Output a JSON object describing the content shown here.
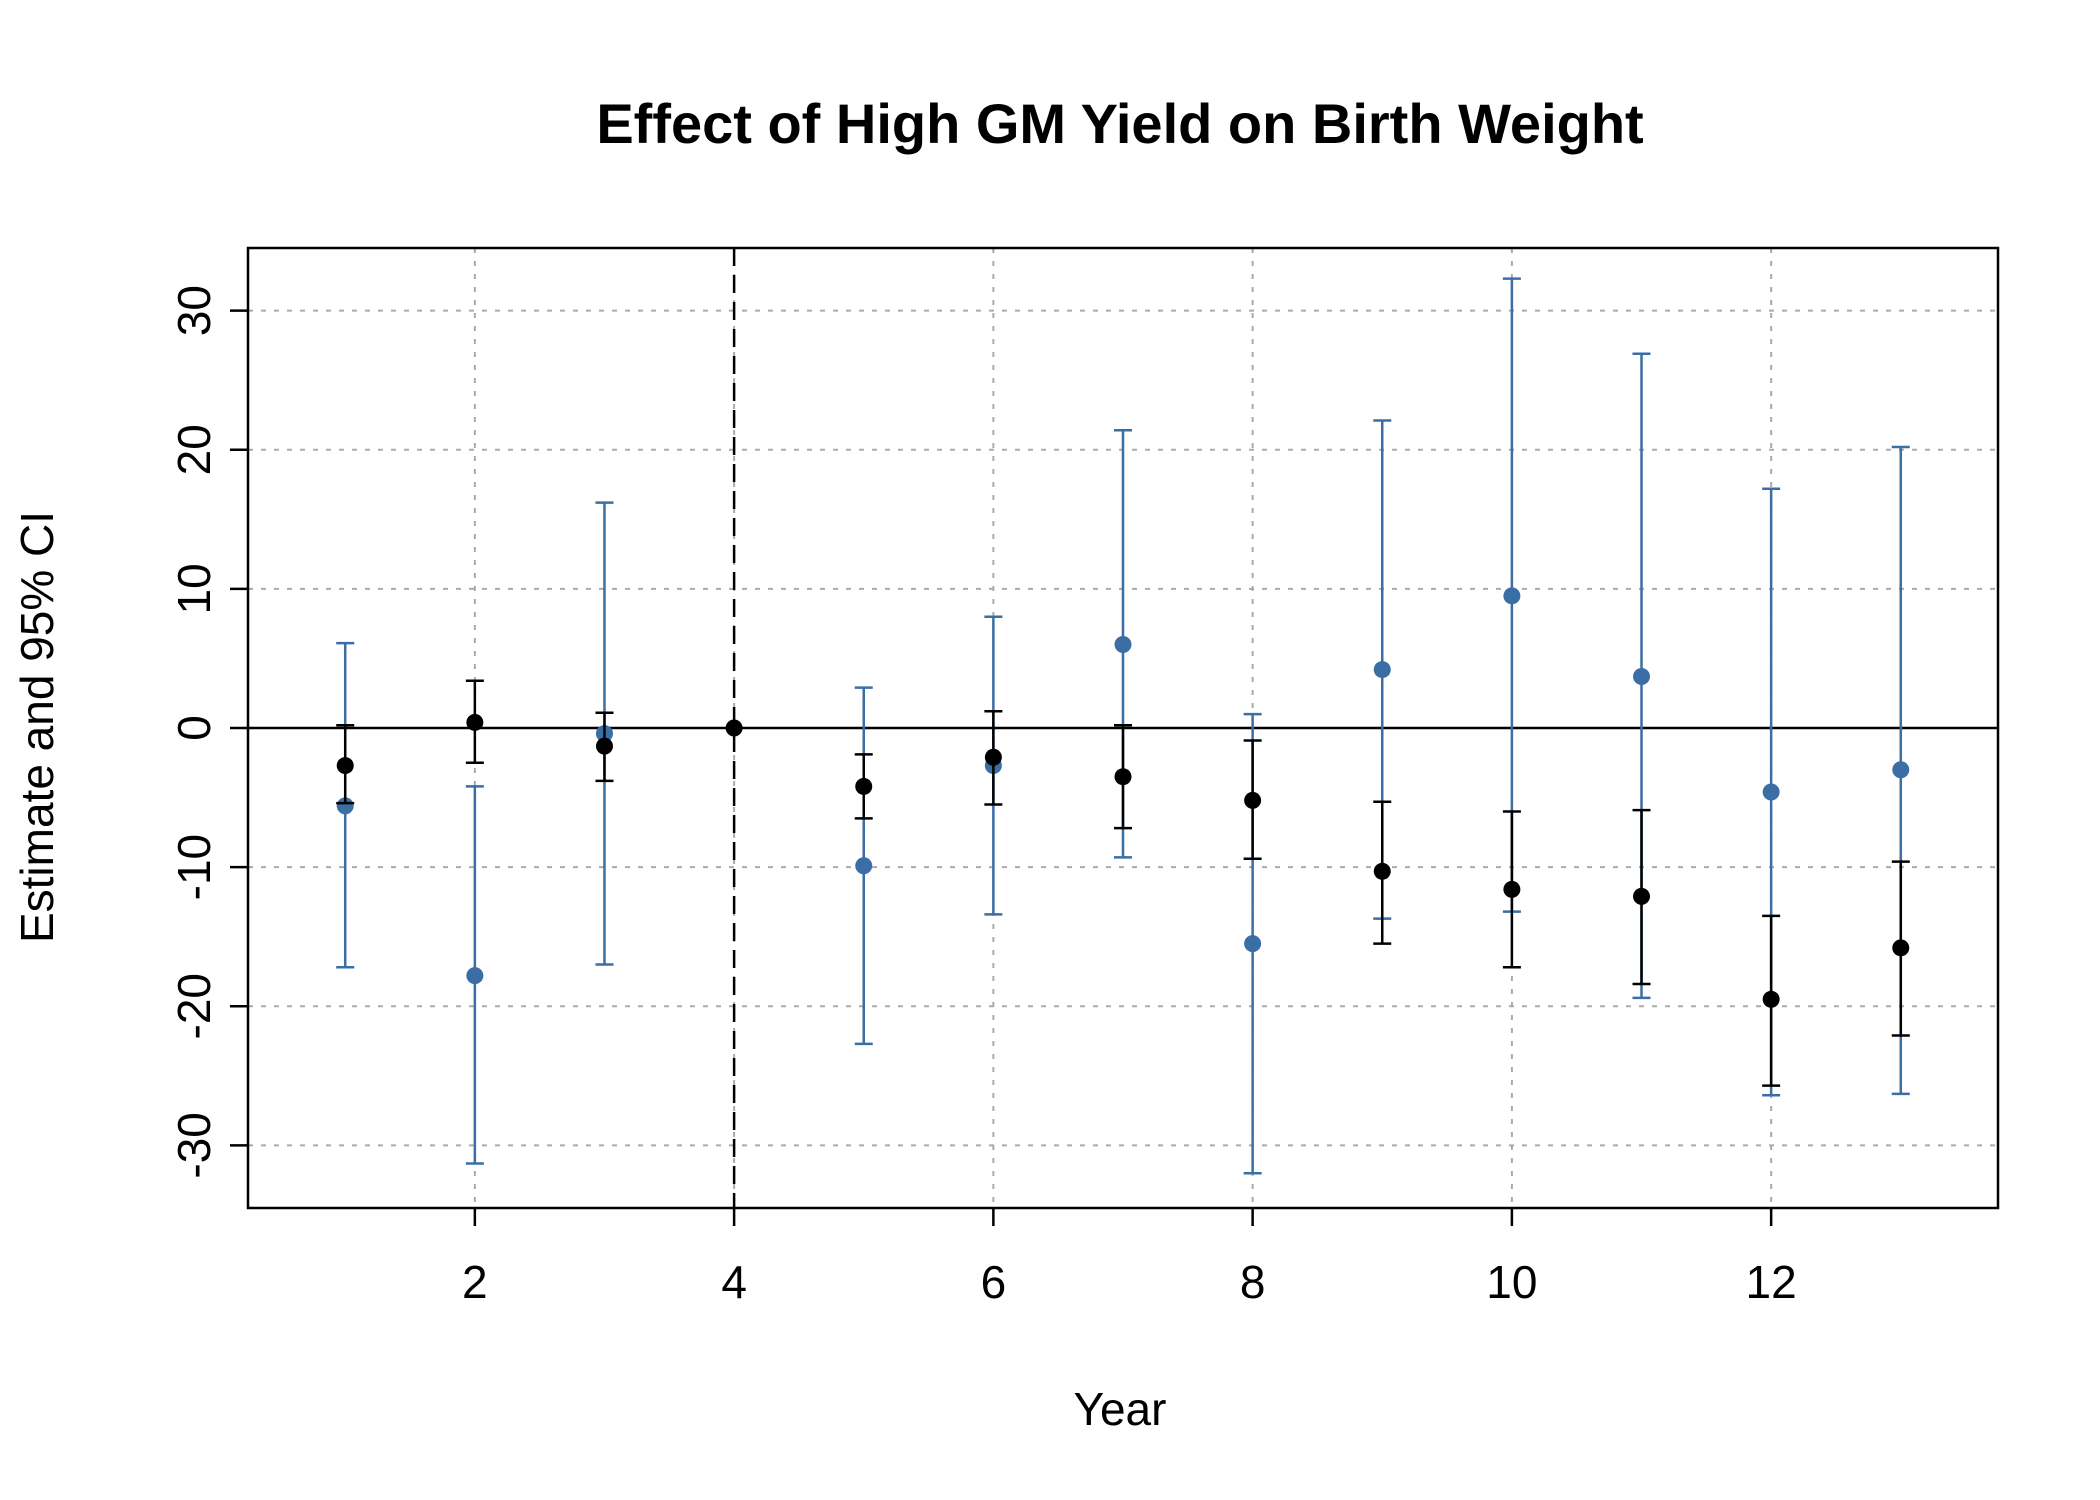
{
  "chart_data": {
    "type": "scatter",
    "title": "Effect of High GM Yield on Birth Weight",
    "xlabel": "Year",
    "ylabel": "Estimate and 95% CI",
    "xlim": [
      0.25,
      13.75
    ],
    "ylim": [
      -34.5,
      34.5
    ],
    "xticks": [
      2,
      4,
      6,
      8,
      10,
      12
    ],
    "yticks": [
      -30,
      -20,
      -10,
      0,
      10,
      20,
      30
    ],
    "grid": true,
    "reference_line_y": 0,
    "reference_line_x": 4,
    "colors": {
      "series_a": "#3A6EA5",
      "series_b": "#000000",
      "grid": "#AAAAAA"
    },
    "series": [
      {
        "color": "#3A6EA5",
        "points": [
          {
            "x": 1,
            "y": -5.6,
            "lo": -17.2,
            "hi": 6.1
          },
          {
            "x": 2,
            "y": -17.8,
            "lo": -31.3,
            "hi": -4.2
          },
          {
            "x": 3,
            "y": -0.4,
            "lo": -17.0,
            "hi": 16.2
          },
          {
            "x": 5,
            "y": -9.9,
            "lo": -22.7,
            "hi": 2.9
          },
          {
            "x": 6,
            "y": -2.7,
            "lo": -13.4,
            "hi": 8.0
          },
          {
            "x": 7,
            "y": 6.0,
            "lo": -9.3,
            "hi": 21.4
          },
          {
            "x": 8,
            "y": -15.5,
            "lo": -32.0,
            "hi": 1.0
          },
          {
            "x": 9,
            "y": 4.2,
            "lo": -13.7,
            "hi": 22.1
          },
          {
            "x": 10,
            "y": 9.5,
            "lo": -13.2,
            "hi": 32.3
          },
          {
            "x": 11,
            "y": 3.7,
            "lo": -19.4,
            "hi": 26.9
          },
          {
            "x": 12,
            "y": -4.6,
            "lo": -26.4,
            "hi": 17.2
          },
          {
            "x": 13,
            "y": -3.0,
            "lo": -26.3,
            "hi": 20.2
          }
        ]
      },
      {
        "color": "#000000",
        "points": [
          {
            "x": 1,
            "y": -2.7,
            "lo": -5.4,
            "hi": 0.2
          },
          {
            "x": 2,
            "y": 0.4,
            "lo": -2.5,
            "hi": 3.4
          },
          {
            "x": 3,
            "y": -1.3,
            "lo": -3.8,
            "hi": 1.1
          },
          {
            "x": 4,
            "y": 0.0,
            "lo": 0.0,
            "hi": 0.0
          },
          {
            "x": 5,
            "y": -4.2,
            "lo": -6.5,
            "hi": -1.9
          },
          {
            "x": 6,
            "y": -2.1,
            "lo": -5.5,
            "hi": 1.2
          },
          {
            "x": 7,
            "y": -3.5,
            "lo": -7.2,
            "hi": 0.2
          },
          {
            "x": 8,
            "y": -5.2,
            "lo": -9.4,
            "hi": -0.9
          },
          {
            "x": 9,
            "y": -10.3,
            "lo": -15.5,
            "hi": -5.3
          },
          {
            "x": 10,
            "y": -11.6,
            "lo": -17.2,
            "hi": -6.0
          },
          {
            "x": 11,
            "y": -12.1,
            "lo": -18.4,
            "hi": -5.9
          },
          {
            "x": 12,
            "y": -19.5,
            "lo": -25.7,
            "hi": -13.5
          },
          {
            "x": 13,
            "y": -15.8,
            "lo": -22.1,
            "hi": -9.6
          }
        ]
      }
    ]
  }
}
